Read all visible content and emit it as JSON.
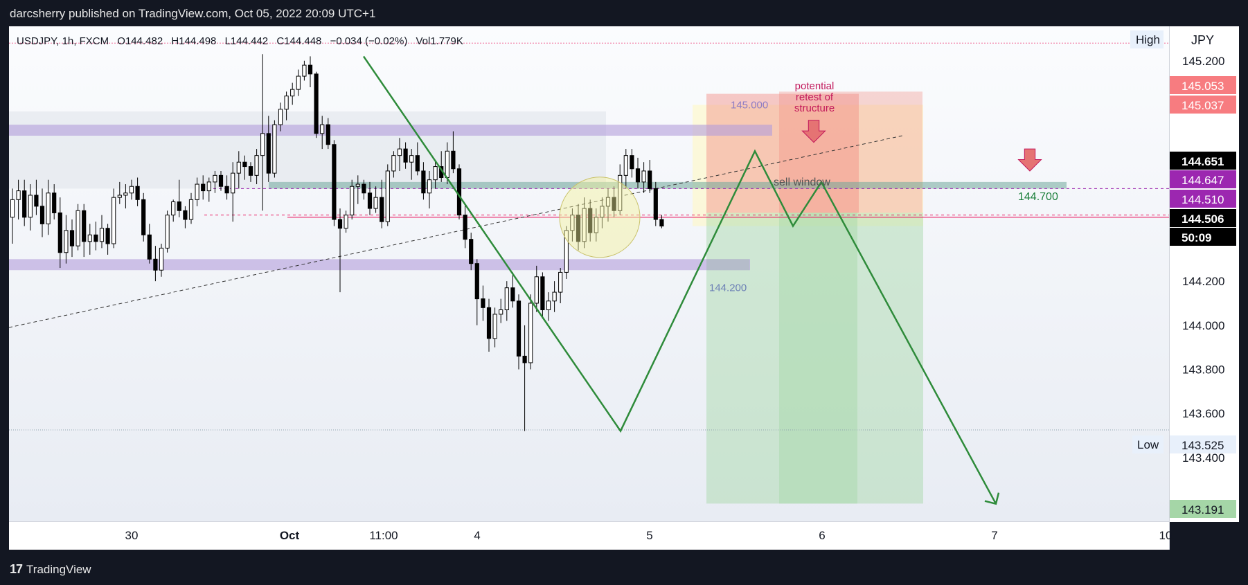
{
  "publisher_line": "darcsherry published on TradingView.com, Oct 05, 2022 20:09 UTC+1",
  "footer_brand": "TradingView",
  "footer_logo_text": "17",
  "symbol_line": {
    "symbol": "USDJPY, 1h, FXCM",
    "open": "O144.482",
    "high": "H144.498",
    "low": "L144.442",
    "close": "C144.448",
    "change": "−0.034 (−0.02%)",
    "volume": "Vol1.779K"
  },
  "currency": "JPY",
  "colors": {
    "bull": "#ffffff",
    "bear": "#000000",
    "zigzag": "#2e8b3a",
    "purple_zone": "#b39ddb",
    "teal_zone": "#6fa79b",
    "short_stop": "#f28b82",
    "short_target": "#a5d6a7",
    "countdown_bg": "#000000",
    "price_tag_red": "#f77c80",
    "price_tag_purple": "#9c27b0"
  },
  "price_scale": {
    "ticks": [
      "145.200",
      "145.000",
      "144.400",
      "144.200",
      "144.000",
      "143.800",
      "143.600",
      "143.400"
    ],
    "tick_values": [
      145.2,
      145.0,
      144.4,
      144.2,
      144.0,
      143.8,
      143.6,
      143.4
    ],
    "labels": [
      {
        "text": "145.053",
        "value": 145.053,
        "style": "red"
      },
      {
        "text": "145.037",
        "value": 145.037,
        "style": "red"
      },
      {
        "text": "144.651",
        "value": 144.651,
        "style": "black"
      },
      {
        "text": "144.647",
        "value": 144.647,
        "style": "purple"
      },
      {
        "text": "144.510",
        "value": 144.51,
        "style": "purple"
      },
      {
        "text": "144.506",
        "value": 144.506,
        "style": "black"
      },
      {
        "text": "50:09",
        "value": 144.44,
        "style": "black"
      },
      {
        "text": "143.525",
        "value": 143.525,
        "style": "low"
      },
      {
        "text": "143.191",
        "value": 143.191,
        "style": "green"
      }
    ],
    "high_label": "High",
    "low_label": "Low"
  },
  "time_scale": {
    "labels": [
      "30",
      "Oct",
      "11:00",
      "4",
      "5",
      "6",
      "7",
      "10"
    ],
    "bold": [
      false,
      true,
      false,
      false,
      false,
      false,
      false,
      false
    ]
  },
  "annotations": {
    "level_145000": "145.000",
    "level_144200": "144.200",
    "level_144700": "144.700",
    "retest_text": [
      "potential",
      "retest of",
      "structure"
    ],
    "sell_window": "sell window"
  },
  "chart_data": {
    "type": "candlestick",
    "symbol": "USDJPY",
    "timeframe": "1h",
    "ylim": [
      143.12,
      145.35
    ],
    "session_high": 145.28,
    "session_low": 143.525,
    "candles": [
      [
        144.49,
        144.62,
        144.37,
        144.57
      ],
      [
        144.57,
        144.66,
        144.48,
        144.61
      ],
      [
        144.61,
        144.66,
        144.45,
        144.49
      ],
      [
        144.49,
        144.64,
        144.43,
        144.59
      ],
      [
        144.59,
        144.66,
        144.5,
        144.54
      ],
      [
        144.54,
        144.62,
        144.4,
        144.46
      ],
      [
        144.46,
        144.66,
        144.41,
        144.6
      ],
      [
        144.6,
        144.64,
        144.48,
        144.51
      ],
      [
        144.51,
        144.58,
        144.26,
        144.33
      ],
      [
        144.33,
        144.5,
        144.28,
        144.43
      ],
      [
        144.43,
        144.48,
        144.31,
        144.36
      ],
      [
        144.36,
        144.55,
        144.34,
        144.52
      ],
      [
        144.52,
        144.55,
        144.31,
        144.38
      ],
      [
        144.38,
        144.46,
        144.32,
        144.41
      ],
      [
        144.41,
        144.47,
        144.34,
        144.38
      ],
      [
        144.38,
        144.5,
        144.35,
        144.44
      ],
      [
        144.44,
        144.46,
        144.32,
        144.37
      ],
      [
        144.37,
        144.62,
        144.35,
        144.58
      ],
      [
        144.58,
        144.65,
        144.55,
        144.59
      ],
      [
        144.59,
        144.64,
        144.53,
        144.6
      ],
      [
        144.6,
        144.66,
        144.57,
        144.63
      ],
      [
        144.63,
        144.67,
        144.54,
        144.57
      ],
      [
        144.57,
        144.6,
        144.38,
        144.41
      ],
      [
        144.41,
        144.46,
        144.28,
        144.3
      ],
      [
        144.3,
        144.36,
        144.2,
        144.25
      ],
      [
        144.25,
        144.37,
        144.22,
        144.35
      ],
      [
        144.35,
        144.52,
        144.33,
        144.5
      ],
      [
        144.5,
        144.57,
        144.47,
        144.56
      ],
      [
        144.56,
        144.66,
        144.49,
        144.52
      ],
      [
        144.52,
        144.54,
        144.44,
        144.48
      ],
      [
        144.48,
        144.6,
        144.46,
        144.57
      ],
      [
        144.57,
        144.67,
        144.54,
        144.64
      ],
      [
        144.64,
        144.68,
        144.57,
        144.61
      ],
      [
        144.61,
        144.67,
        144.56,
        144.65
      ],
      [
        144.65,
        144.7,
        144.6,
        144.68
      ],
      [
        144.68,
        144.7,
        144.61,
        144.63
      ],
      [
        144.63,
        144.68,
        144.57,
        144.6
      ],
      [
        144.6,
        144.74,
        144.47,
        144.69
      ],
      [
        144.69,
        144.79,
        144.62,
        144.74
      ],
      [
        144.74,
        144.77,
        144.66,
        144.72
      ],
      [
        144.72,
        144.74,
        144.65,
        144.68
      ],
      [
        144.68,
        144.8,
        144.64,
        144.77
      ],
      [
        144.77,
        145.23,
        144.52,
        144.87
      ],
      [
        144.87,
        144.95,
        144.65,
        144.69
      ],
      [
        144.69,
        144.93,
        144.67,
        144.91
      ],
      [
        144.91,
        145.01,
        144.88,
        144.98
      ],
      [
        144.98,
        145.06,
        144.93,
        145.04
      ],
      [
        145.04,
        145.1,
        145.0,
        145.07
      ],
      [
        145.07,
        145.16,
        145.04,
        145.13
      ],
      [
        145.13,
        145.2,
        145.11,
        145.18
      ],
      [
        145.18,
        145.22,
        145.08,
        145.14
      ],
      [
        145.14,
        145.15,
        144.85,
        144.87
      ],
      [
        144.87,
        144.95,
        144.8,
        144.91
      ],
      [
        144.91,
        144.94,
        144.8,
        144.82
      ],
      [
        144.82,
        144.84,
        144.45,
        144.48
      ],
      [
        144.48,
        144.53,
        144.15,
        144.44
      ],
      [
        144.44,
        144.52,
        144.42,
        144.5
      ],
      [
        144.5,
        144.66,
        144.48,
        144.63
      ],
      [
        144.63,
        144.68,
        144.55,
        144.64
      ],
      [
        144.64,
        144.66,
        144.57,
        144.6
      ],
      [
        144.6,
        144.65,
        144.5,
        144.53
      ],
      [
        144.53,
        144.63,
        144.51,
        144.58
      ],
      [
        144.58,
        144.66,
        144.44,
        144.47
      ],
      [
        144.47,
        144.73,
        144.45,
        144.7
      ],
      [
        144.7,
        144.79,
        144.67,
        144.77
      ],
      [
        144.77,
        144.85,
        144.7,
        144.8
      ],
      [
        144.8,
        144.83,
        144.71,
        144.74
      ],
      [
        144.74,
        144.8,
        144.66,
        144.77
      ],
      [
        144.77,
        144.83,
        144.68,
        144.7
      ],
      [
        144.7,
        144.74,
        144.57,
        144.6
      ],
      [
        144.6,
        144.7,
        144.53,
        144.66
      ],
      [
        144.66,
        144.75,
        144.62,
        144.72
      ],
      [
        144.72,
        144.79,
        144.65,
        144.67
      ],
      [
        144.67,
        144.83,
        144.64,
        144.79
      ],
      [
        144.79,
        144.88,
        144.69,
        144.71
      ],
      [
        144.71,
        144.73,
        144.48,
        144.5
      ],
      [
        144.5,
        144.55,
        144.35,
        144.39
      ],
      [
        144.39,
        144.42,
        144.25,
        144.28
      ],
      [
        144.28,
        144.3,
        144.0,
        144.12
      ],
      [
        144.12,
        144.18,
        144.02,
        144.08
      ],
      [
        144.08,
        144.12,
        143.88,
        143.94
      ],
      [
        143.94,
        144.08,
        143.9,
        144.05
      ],
      [
        144.05,
        144.12,
        144.01,
        144.07
      ],
      [
        144.07,
        144.2,
        144.02,
        144.17
      ],
      [
        144.17,
        144.24,
        144.08,
        144.11
      ],
      [
        144.11,
        144.14,
        143.8,
        143.86
      ],
      [
        143.86,
        144.0,
        143.52,
        143.83
      ],
      [
        143.83,
        144.14,
        143.8,
        144.1
      ],
      [
        144.1,
        144.27,
        144.06,
        144.22
      ],
      [
        144.22,
        144.24,
        144.03,
        144.07
      ],
      [
        144.07,
        144.15,
        144.02,
        144.11
      ],
      [
        144.11,
        144.2,
        144.06,
        144.15
      ],
      [
        144.15,
        144.26,
        144.1,
        144.24
      ],
      [
        144.24,
        144.45,
        144.21,
        144.43
      ],
      [
        144.43,
        144.53,
        144.38,
        144.5
      ],
      [
        144.5,
        144.55,
        144.34,
        144.38
      ],
      [
        144.38,
        144.58,
        144.35,
        144.53
      ],
      [
        144.53,
        144.57,
        144.38,
        144.42
      ],
      [
        144.42,
        144.53,
        144.38,
        144.49
      ],
      [
        144.49,
        144.58,
        144.44,
        144.54
      ],
      [
        144.54,
        144.62,
        144.47,
        144.58
      ],
      [
        144.58,
        144.63,
        144.49,
        144.52
      ],
      [
        144.52,
        144.73,
        144.5,
        144.68
      ],
      [
        144.68,
        144.8,
        144.62,
        144.77
      ],
      [
        144.77,
        144.8,
        144.67,
        144.71
      ],
      [
        144.71,
        144.76,
        144.62,
        144.65
      ],
      [
        144.65,
        144.74,
        144.6,
        144.7
      ],
      [
        144.7,
        144.75,
        144.6,
        144.62
      ],
      [
        144.62,
        144.65,
        144.45,
        144.48
      ],
      [
        144.48,
        144.5,
        144.44,
        144.45
      ]
    ],
    "zones": [
      {
        "low": 144.86,
        "high": 144.91
      },
      {
        "low": 144.25,
        "high": 144.3
      },
      {
        "low": 144.62,
        "high": 144.65
      }
    ],
    "zigzag": [
      {
        "label": "start",
        "value": 145.22
      },
      {
        "label": "low",
        "value": 143.52
      },
      {
        "label": "high",
        "value": 144.79
      },
      {
        "label": "dip",
        "value": 144.45
      },
      {
        "label": "retest",
        "value": 144.65
      },
      {
        "label": "target",
        "value": 143.19
      }
    ],
    "trendline_dashed": {
      "from": 143.99,
      "to": 144.86
    },
    "position_short": {
      "entry": 144.51,
      "stop": 145.05,
      "target": 143.191
    }
  }
}
